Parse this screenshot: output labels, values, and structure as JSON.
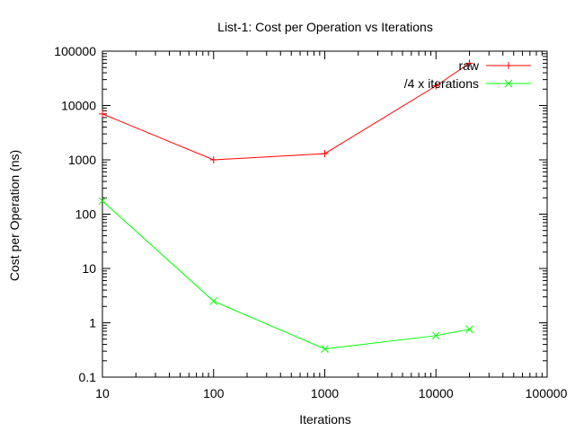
{
  "chart_data": {
    "type": "line",
    "title": "List-1: Cost per Operation vs Iterations",
    "xlabel": "Iterations",
    "ylabel": "Cost per Operation (ns)",
    "x_scale": "log",
    "y_scale": "log",
    "xlim": [
      10,
      100000
    ],
    "ylim": [
      0.1,
      100000
    ],
    "x_ticks": [
      10,
      100,
      1000,
      10000,
      100000
    ],
    "x_tick_labels": [
      "10",
      "100",
      "1000",
      "10000",
      "100000"
    ],
    "y_ticks": [
      0.1,
      1,
      10,
      100,
      1000,
      10000,
      100000
    ],
    "y_tick_labels": [
      "0.1",
      "1",
      "10",
      "100",
      "1000",
      "10000",
      "100000"
    ],
    "grid": false,
    "legend_position": "top-right",
    "series": [
      {
        "name": "raw",
        "color": "#ff0000",
        "marker": "plus",
        "points": [
          {
            "x": 10,
            "y": 7000
          },
          {
            "x": 100,
            "y": 1000
          },
          {
            "x": 1000,
            "y": 1300
          },
          {
            "x": 10000,
            "y": 23000
          },
          {
            "x": 20000,
            "y": 60000
          }
        ]
      },
      {
        "name": "/4 x iterations",
        "color": "#00ff00",
        "marker": "cross",
        "points": [
          {
            "x": 10,
            "y": 175
          },
          {
            "x": 100,
            "y": 2.5
          },
          {
            "x": 1000,
            "y": 0.33
          },
          {
            "x": 10000,
            "y": 0.58
          },
          {
            "x": 20000,
            "y": 0.76
          }
        ]
      }
    ]
  }
}
